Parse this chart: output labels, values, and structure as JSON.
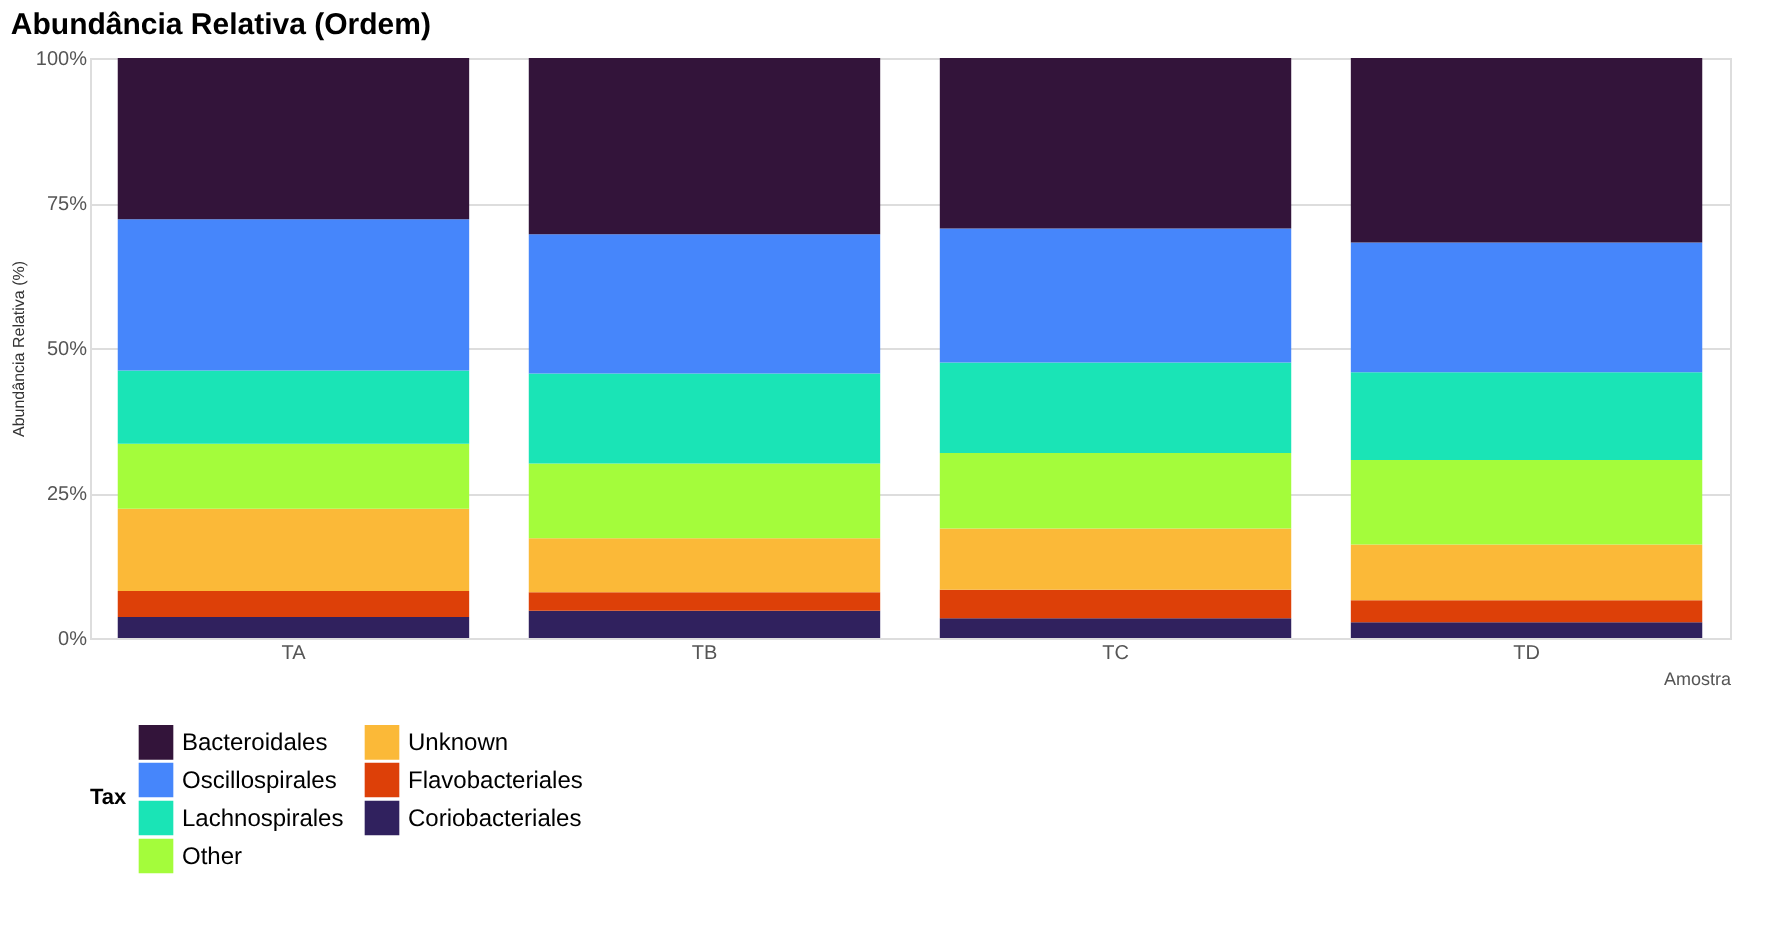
{
  "chart_data": {
    "type": "bar",
    "title": "Abundância Relativa (Ordem)",
    "xlabel": "Amostra",
    "ylabel": "Abundância Relativa (%)",
    "legend_title": "Tax",
    "categories": [
      "TA",
      "TB",
      "TC",
      "TD"
    ],
    "stacked": true,
    "series": [
      {
        "name": "Coriobacteriales",
        "color": "#30215e",
        "values": [
          3.6,
          4.7,
          3.4,
          2.7
        ]
      },
      {
        "name": "Flavobacteriales",
        "color": "#dd4008",
        "values": [
          4.5,
          3.2,
          4.9,
          3.8
        ]
      },
      {
        "name": "Unknown",
        "color": "#fbb938",
        "values": [
          14.2,
          9.3,
          10.6,
          9.6
        ]
      },
      {
        "name": "Other",
        "color": "#a4fc3b",
        "values": [
          11.2,
          12.9,
          13.0,
          14.6
        ]
      },
      {
        "name": "Lachnospirales",
        "color": "#1ae4b6",
        "values": [
          12.6,
          15.5,
          15.6,
          15.1
        ]
      },
      {
        "name": "Oscillospirales",
        "color": "#4686fb",
        "values": [
          26.1,
          24.0,
          23.1,
          22.4
        ]
      },
      {
        "name": "Bacteroidales",
        "color": "#33143a",
        "values": [
          27.8,
          30.4,
          29.4,
          31.8
        ]
      }
    ],
    "ylim": [
      0,
      100
    ],
    "yticks": [
      {
        "value": 0,
        "label": "0%"
      },
      {
        "value": 25,
        "label": "25%"
      },
      {
        "value": 50,
        "label": "50%"
      },
      {
        "value": 75,
        "label": "75%"
      },
      {
        "value": 100,
        "label": "100%"
      }
    ],
    "grid": "y",
    "legend": "bottom"
  }
}
